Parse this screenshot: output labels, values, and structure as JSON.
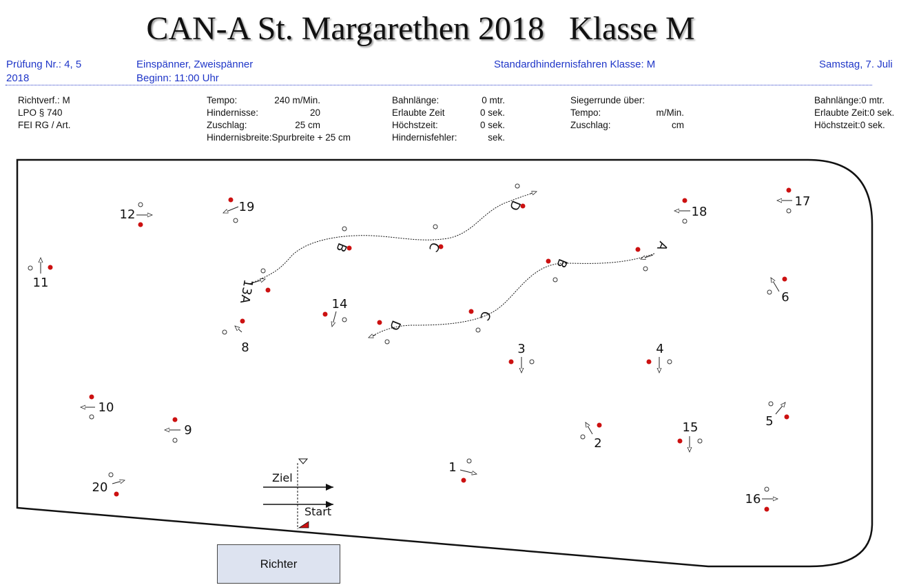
{
  "title": "CAN-A St. Margarethen 2018   Klasse M",
  "header": {
    "pruefung": "Prüfung Nr.: 4, 5",
    "pruefung_year": "2018",
    "fahrer": "Einspänner, Zweispänner",
    "beginn": "Beginn: 11:00 Uhr",
    "bewerb": "Standardhindernisfahren Klasse: M",
    "datum": "Samstag, 7. Juli"
  },
  "info": {
    "col1": [
      "Richtverf.: M",
      "LPO § 740",
      "FEI RG / Art."
    ],
    "col2": [
      {
        "label": "Tempo:",
        "value": "240 m/Min."
      },
      {
        "label": "Hindernisse:",
        "value": "20"
      },
      {
        "label": "Zuschlag:",
        "value": "25 cm"
      },
      {
        "label": "Hindernisbreite:",
        "value": "Spurbreite + 25 cm"
      }
    ],
    "col3": [
      {
        "label": "Bahnlänge:",
        "value": "0 mtr."
      },
      {
        "label": "Erlaubte Zeit",
        "value": "0 sek."
      },
      {
        "label": "Höchstzeit:",
        "value": "0 sek."
      },
      {
        "label": "Hindernisfehler:",
        "value": "sek."
      }
    ],
    "col4": [
      {
        "label": "Siegerrunde über:",
        "value": ""
      },
      {
        "label": "Tempo:",
        "value": "m/Min."
      },
      {
        "label": "Zuschlag:",
        "value": "cm"
      }
    ],
    "col5": [
      "Bahnlänge:0 mtr.",
      "Erlaubte Zeit:0 sek.",
      "Höchstzeit:0 sek."
    ]
  },
  "course": {
    "numbers": [
      "1",
      "2",
      "3",
      "4",
      "5",
      "6",
      "8",
      "9",
      "10",
      "11",
      "12",
      "14",
      "15",
      "16",
      "17",
      "18",
      "19",
      "20"
    ],
    "upper_gates": [
      "13A",
      "B",
      "C",
      "D"
    ],
    "lower_gates": [
      "A",
      "B",
      "C",
      "D"
    ],
    "ziel": "Ziel",
    "start": "Start",
    "richter": "Richter",
    "colors": {
      "red": "#cc1111",
      "line": "#111111"
    }
  }
}
